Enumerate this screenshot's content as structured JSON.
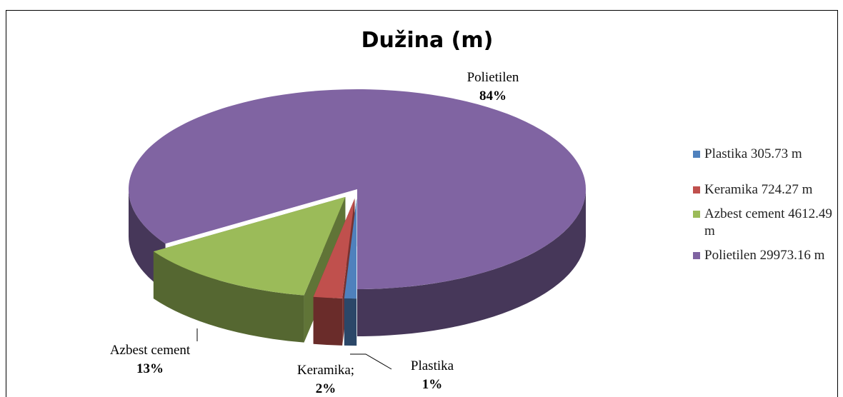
{
  "chart_data": {
    "type": "pie",
    "title": "Dužina (m)",
    "categories": [
      "Plastika",
      "Keramika;",
      "Azbest cement",
      "Polietilen"
    ],
    "legend_labels": [
      "Plastika 305.73 m",
      "Keramika 724.27 m",
      "Azbest cement 4612.49 m",
      "Polietilen 29973.16 m"
    ],
    "values": [
      0.86,
      2.03,
      12.95,
      84.16
    ],
    "value_labels": [
      "1%",
      "2%",
      "13%",
      "84%"
    ],
    "colors": [
      "#4f81bd",
      "#c0504d",
      "#9bbb59",
      "#8064a2"
    ],
    "exploded": [
      true,
      true,
      true,
      false
    ],
    "legend": "right"
  }
}
